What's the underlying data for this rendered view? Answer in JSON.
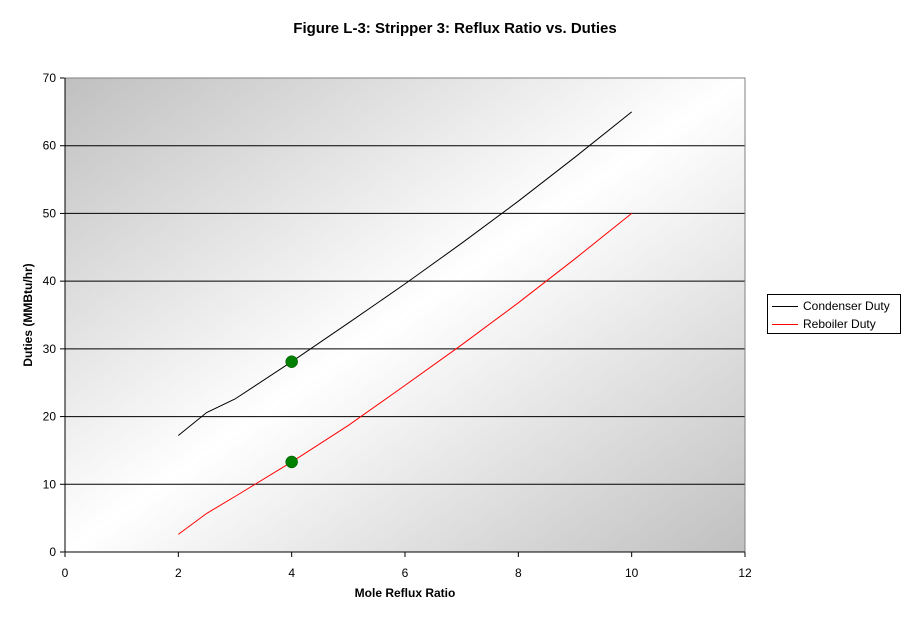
{
  "chart_data": {
    "type": "line",
    "title": "Figure L-3: Stripper 3:  Reflux Ratio vs. Duties",
    "xlabel": "Mole Reflux Ratio",
    "ylabel": "Duties (MMBtu/hr)",
    "xlim": [
      0,
      12
    ],
    "ylim": [
      0,
      70
    ],
    "xticks": [
      0,
      2,
      4,
      6,
      8,
      10,
      12
    ],
    "yticks": [
      0,
      10,
      20,
      30,
      40,
      50,
      60,
      70
    ],
    "grid": "horizontal",
    "legend_position": "right",
    "series": [
      {
        "name": "Condenser Duty",
        "color": "#000000",
        "x": [
          2,
          2.5,
          3,
          4,
          5,
          6,
          7,
          8,
          9,
          10
        ],
        "y": [
          17.2,
          20.6,
          22.6,
          28.1,
          33.8,
          39.6,
          45.6,
          51.8,
          58.3,
          65
        ]
      },
      {
        "name": "Reboiler Duty",
        "color": "#ff0000",
        "x": [
          2,
          2.5,
          3,
          4,
          5,
          6,
          7,
          8,
          9,
          10
        ],
        "y": [
          2.6,
          5.7,
          8.2,
          13.3,
          18.7,
          24.6,
          30.6,
          36.8,
          43.3,
          50
        ]
      }
    ],
    "markers": [
      {
        "x": 4,
        "y": 28.1,
        "color": "#008000"
      },
      {
        "x": 4,
        "y": 13.3,
        "color": "#008000"
      }
    ]
  }
}
